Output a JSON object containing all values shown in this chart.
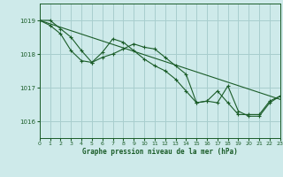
{
  "title": "Graphe pression niveau de la mer (hPa)",
  "bg_color": "#ceeaea",
  "grid_color": "#a8cece",
  "line_color": "#1a5c28",
  "xlim": [
    0,
    23
  ],
  "ylim": [
    1015.5,
    1019.5
  ],
  "yticks": [
    1016,
    1017,
    1018,
    1019
  ],
  "xticks": [
    0,
    1,
    2,
    3,
    4,
    5,
    6,
    7,
    8,
    9,
    10,
    11,
    12,
    13,
    14,
    15,
    16,
    17,
    18,
    19,
    20,
    21,
    22,
    23
  ],
  "line1": {
    "x": [
      0,
      1,
      2,
      3,
      4,
      5,
      6,
      7,
      8,
      9,
      10,
      11,
      12,
      13,
      14,
      15,
      16,
      17,
      18,
      19,
      20,
      21,
      22,
      23
    ],
    "y": [
      1019.0,
      1018.85,
      1018.6,
      1018.1,
      1017.8,
      1017.75,
      1018.05,
      1018.45,
      1018.35,
      1018.1,
      1017.85,
      1017.65,
      1017.5,
      1017.25,
      1016.9,
      1016.55,
      1016.6,
      1016.9,
      1016.55,
      1016.2,
      1016.2,
      1016.2,
      1016.6,
      1016.75
    ]
  },
  "line2": {
    "x": [
      0,
      1,
      2,
      3,
      4,
      5,
      6,
      7,
      8,
      9,
      10,
      11,
      12,
      13,
      14,
      15,
      16,
      17,
      18,
      19,
      20,
      21,
      22,
      23
    ],
    "y": [
      1019.0,
      1019.0,
      1018.75,
      1018.5,
      1018.1,
      1017.75,
      1017.9,
      1018.0,
      1018.15,
      1018.3,
      1018.2,
      1018.15,
      1017.9,
      1017.65,
      1017.4,
      1016.55,
      1016.6,
      1016.55,
      1017.05,
      1016.3,
      1016.15,
      1016.15,
      1016.55,
      1016.75
    ]
  },
  "line3": {
    "x": [
      0,
      23
    ],
    "y": [
      1019.0,
      1016.65
    ]
  }
}
